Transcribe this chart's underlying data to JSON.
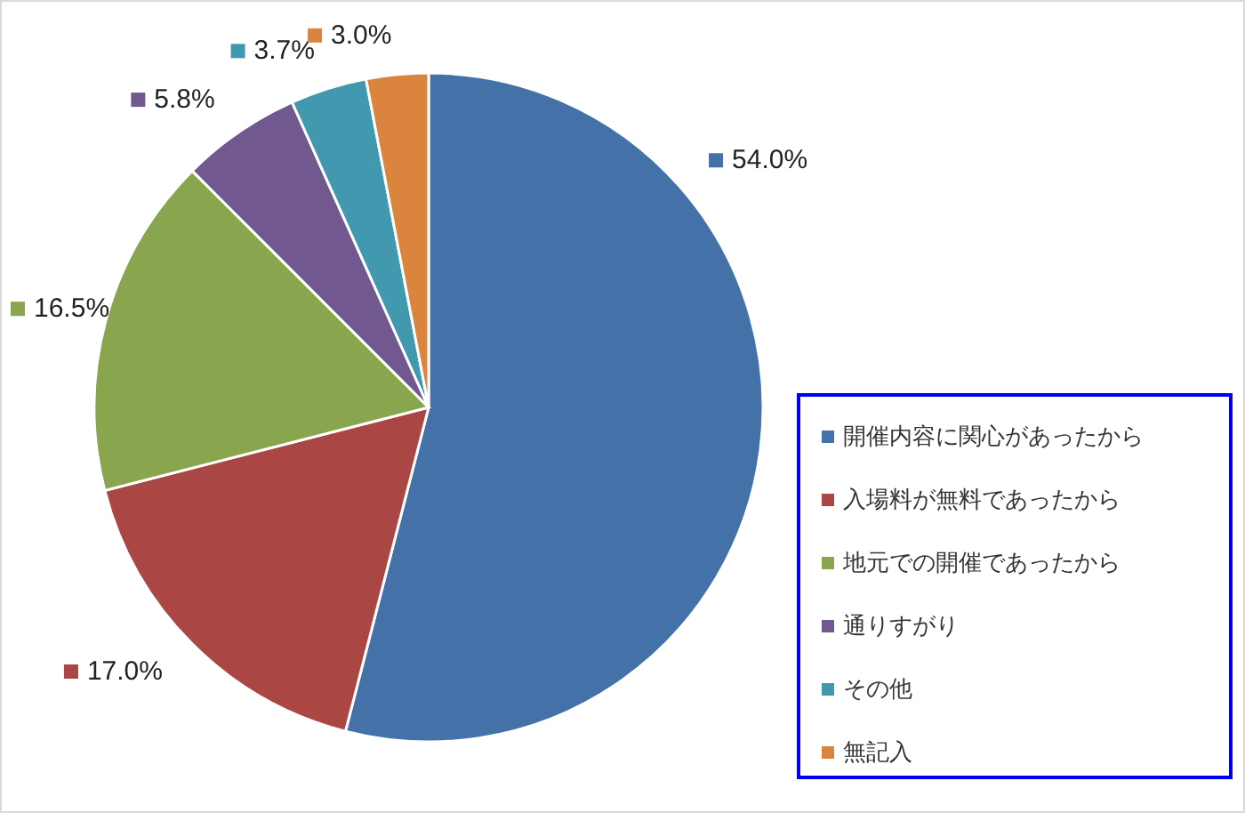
{
  "chart_data": {
    "type": "pie",
    "categories": [
      "開催内容に関心があったから",
      "入場料が無料であったから",
      "地元での開催であったから",
      "通りすがり",
      "その他",
      "無記入"
    ],
    "values": [
      54.0,
      17.0,
      16.5,
      5.8,
      3.7,
      3.0
    ],
    "colors": [
      "#4472a8",
      "#aa4644",
      "#89a54e",
      "#71588f",
      "#4198af",
      "#db843d"
    ],
    "value_labels": [
      "54.0%",
      "17.0%",
      "16.5%",
      "5.8%",
      "3.7%",
      "3.0%"
    ],
    "legend": "right"
  }
}
